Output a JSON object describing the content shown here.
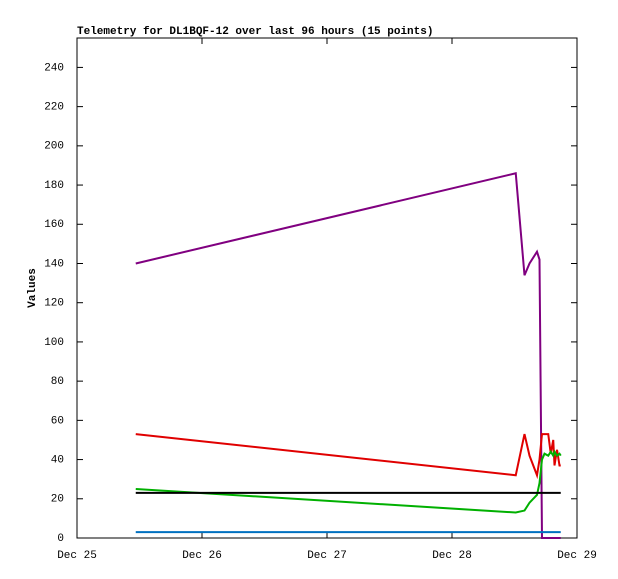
{
  "chart_data": {
    "type": "line",
    "title": "Telemetry for DL1BQF-12 over last 96 hours (15 points)",
    "y_label": "Values",
    "x": [
      25.47,
      28.51,
      28.58,
      28.62,
      28.68,
      28.7,
      28.72,
      28.74,
      28.77,
      28.79,
      28.81,
      28.82,
      28.84,
      28.86,
      28.87
    ],
    "xlim": [
      25,
      29
    ],
    "xticks": [
      {
        "value": 25,
        "label": "Dec 25"
      },
      {
        "value": 26,
        "label": "Dec 26"
      },
      {
        "value": 27,
        "label": "Dec 27"
      },
      {
        "value": 28,
        "label": "Dec 28"
      },
      {
        "value": 29,
        "label": "Dec 29"
      }
    ],
    "ylim": [
      0,
      255
    ],
    "yticks": [
      0,
      20,
      40,
      60,
      80,
      100,
      120,
      140,
      160,
      180,
      200,
      220,
      240
    ],
    "series": [
      {
        "color": "#800080",
        "values": [
          140,
          186,
          134,
          140,
          146,
          142,
          0,
          0,
          0,
          0,
          0,
          0,
          0,
          0,
          0
        ]
      },
      {
        "color": "#e00000",
        "values": [
          53,
          32,
          53,
          42,
          32,
          40,
          53,
          53,
          53,
          43,
          50,
          37,
          45,
          37,
          37
        ]
      },
      {
        "color": "#00b000",
        "values": [
          25,
          13,
          14,
          18,
          22,
          28,
          40,
          43,
          42,
          44,
          42,
          44,
          42,
          43,
          42
        ]
      },
      {
        "color": "#000000",
        "values": [
          23,
          23,
          23,
          23,
          23,
          23,
          23,
          23,
          23,
          23,
          23,
          23,
          23,
          23,
          23
        ]
      },
      {
        "color": "#0070c0",
        "values": [
          3,
          3,
          3,
          3,
          3,
          3,
          3,
          3,
          3,
          3,
          3,
          3,
          3,
          3,
          3
        ]
      }
    ]
  }
}
